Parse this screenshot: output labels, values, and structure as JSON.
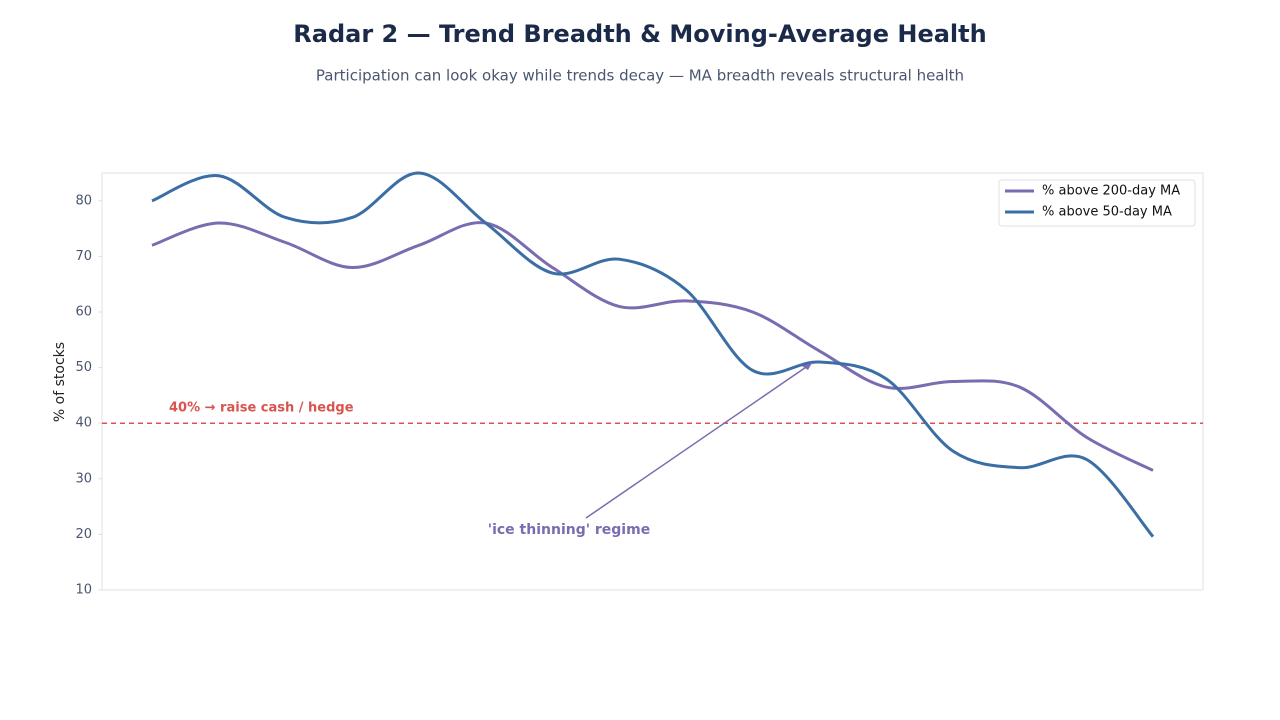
{
  "chart_data": {
    "type": "line",
    "title": "Radar 2 — Trend Breadth & Moving-Average Health",
    "subtitle": "Participation can look okay while trends decay — MA breadth reveals structural health",
    "y_label": "% of stocks",
    "categories": [
      null,
      null,
      null,
      null,
      null,
      null,
      null,
      null,
      null,
      null,
      null,
      null,
      null,
      null,
      null,
      null
    ],
    "series": [
      {
        "name": "% above 200-day MA",
        "color": "#7b6bb0",
        "values": [
          72,
          76,
          72.5,
          68,
          72,
          76,
          68,
          61,
          62,
          60,
          53,
          46.5,
          47.5,
          46.5,
          37.5,
          31.5
        ]
      },
      {
        "name": "% above 50-day MA",
        "color": "#3a6ea5",
        "values": [
          80,
          84.5,
          77,
          77,
          85,
          76,
          67,
          69.5,
          64,
          49.5,
          51,
          48,
          35,
          32,
          33.5,
          19.6
        ]
      }
    ],
    "ylim": [
      10,
      85
    ],
    "yticks": [
      10,
      20,
      30,
      40,
      50,
      60,
      70,
      80
    ],
    "grid": false,
    "legend": "upper right",
    "reference_line": {
      "value": 40,
      "label": "40% → raise cash / hedge",
      "color": "#d9534f"
    },
    "annotation": {
      "text": "'ice thinning' regime",
      "color": "#7b6bb0"
    }
  }
}
